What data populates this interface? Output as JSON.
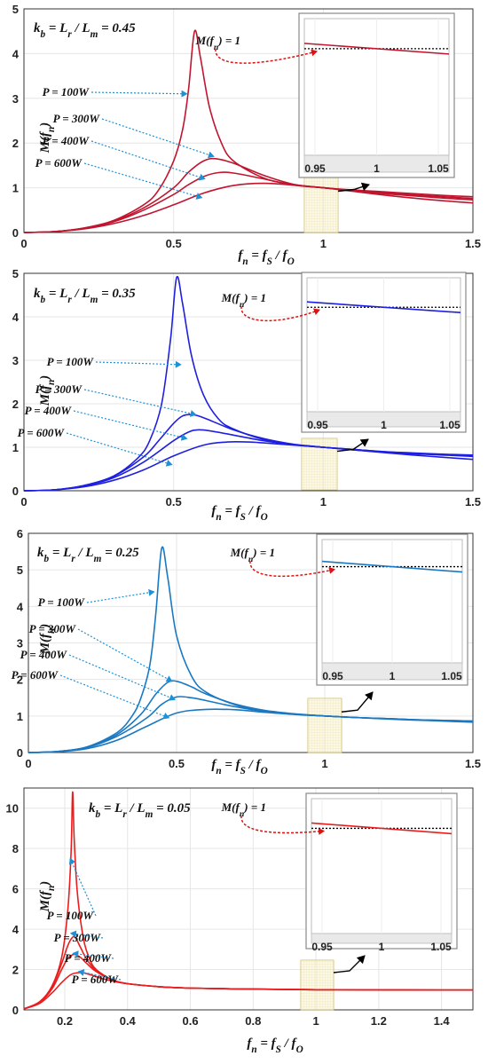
{
  "chart_data": [
    {
      "type": "line",
      "title": "k_b = L_r / L_m = 0.45",
      "xlabel": "f_n = f_S / f_O",
      "ylabel": "M(f_n)",
      "xlim": [
        0,
        1.5
      ],
      "ylim": [
        0,
        5
      ],
      "xticks": [
        "0",
        "0.5",
        "1",
        "1.5"
      ],
      "yticks": [
        "0",
        "1",
        "2",
        "3",
        "4",
        "5"
      ],
      "color": "#c0152f",
      "grid": true,
      "series": [
        {
          "name": "P = 100W",
          "x": [
            0,
            0.1,
            0.2,
            0.3,
            0.4,
            0.45,
            0.5,
            0.53,
            0.55,
            0.57,
            0.59,
            0.62,
            0.66,
            0.7,
            0.8,
            0.9,
            1.0,
            1.1,
            1.2,
            1.3,
            1.4,
            1.5
          ],
          "y": [
            0,
            0.02,
            0.1,
            0.27,
            0.62,
            0.95,
            1.6,
            2.3,
            3.2,
            4.5,
            3.9,
            2.8,
            2.0,
            1.6,
            1.22,
            1.07,
            1.0,
            0.95,
            0.91,
            0.87,
            0.83,
            0.8
          ]
        },
        {
          "name": "P = 300W",
          "x": [
            0,
            0.1,
            0.2,
            0.3,
            0.4,
            0.5,
            0.55,
            0.6,
            0.64,
            0.7,
            0.8,
            0.9,
            1.0,
            1.1,
            1.2,
            1.3,
            1.4,
            1.5
          ],
          "y": [
            0,
            0.02,
            0.1,
            0.26,
            0.55,
            1.0,
            1.35,
            1.6,
            1.65,
            1.55,
            1.28,
            1.08,
            1.0,
            0.94,
            0.89,
            0.84,
            0.8,
            0.76
          ]
        },
        {
          "name": "P = 400W",
          "x": [
            0,
            0.1,
            0.2,
            0.3,
            0.4,
            0.5,
            0.55,
            0.6,
            0.65,
            0.7,
            0.8,
            0.9,
            1.0,
            1.1,
            1.2,
            1.3,
            1.4,
            1.5
          ],
          "y": [
            0,
            0.02,
            0.09,
            0.24,
            0.5,
            0.85,
            1.07,
            1.25,
            1.34,
            1.33,
            1.2,
            1.06,
            1.0,
            0.93,
            0.87,
            0.82,
            0.77,
            0.73
          ]
        },
        {
          "name": "P = 600W",
          "x": [
            0,
            0.1,
            0.2,
            0.3,
            0.4,
            0.5,
            0.6,
            0.7,
            0.8,
            0.9,
            1.0,
            1.1,
            1.2,
            1.3,
            1.4,
            1.5
          ],
          "y": [
            0,
            0.02,
            0.08,
            0.2,
            0.38,
            0.62,
            0.88,
            1.05,
            1.1,
            1.06,
            1.0,
            0.92,
            0.84,
            0.77,
            0.71,
            0.66
          ]
        }
      ],
      "annotations": [
        "P = 100W",
        "P = 300W",
        "P = 400W",
        "P = 600W",
        "M(f_n) = 1"
      ],
      "inset": {
        "xticks": [
          "0.95",
          "1",
          "1.05"
        ]
      }
    },
    {
      "type": "line",
      "title": "k_b = L_r / L_m = 0.35",
      "xlabel": "f_n = f_S / f_O",
      "ylabel": "M(f_n)",
      "xlim": [
        0,
        1.5
      ],
      "ylim": [
        0,
        5
      ],
      "xticks": [
        "0",
        "0.5",
        "1",
        "1.5"
      ],
      "yticks": [
        "0",
        "1",
        "2",
        "3",
        "4",
        "5"
      ],
      "color": "#1f1fe0",
      "grid": true,
      "series": [
        {
          "name": "P = 100W",
          "x": [
            0,
            0.1,
            0.2,
            0.3,
            0.38,
            0.42,
            0.46,
            0.49,
            0.51,
            0.53,
            0.56,
            0.6,
            0.65,
            0.7,
            0.8,
            0.9,
            1.0,
            1.1,
            1.2,
            1.3,
            1.4,
            1.5
          ],
          "y": [
            0,
            0.02,
            0.12,
            0.34,
            0.75,
            1.15,
            2.0,
            3.5,
            4.9,
            4.3,
            3.1,
            2.2,
            1.65,
            1.42,
            1.18,
            1.06,
            1.0,
            0.95,
            0.9,
            0.87,
            0.84,
            0.82
          ]
        },
        {
          "name": "P = 300W",
          "x": [
            0,
            0.1,
            0.2,
            0.3,
            0.4,
            0.45,
            0.5,
            0.53,
            0.56,
            0.6,
            0.7,
            0.8,
            0.9,
            1.0,
            1.1,
            1.2,
            1.3,
            1.4,
            1.5
          ],
          "y": [
            0,
            0.02,
            0.12,
            0.33,
            0.78,
            1.15,
            1.55,
            1.72,
            1.75,
            1.68,
            1.4,
            1.2,
            1.07,
            1.0,
            0.95,
            0.9,
            0.86,
            0.83,
            0.8
          ]
        },
        {
          "name": "P = 400W",
          "x": [
            0,
            0.1,
            0.2,
            0.3,
            0.4,
            0.5,
            0.55,
            0.58,
            0.62,
            0.7,
            0.8,
            0.9,
            1.0,
            1.1,
            1.2,
            1.3,
            1.4,
            1.5
          ],
          "y": [
            0,
            0.02,
            0.11,
            0.3,
            0.66,
            1.15,
            1.35,
            1.4,
            1.38,
            1.28,
            1.15,
            1.06,
            1.0,
            0.94,
            0.89,
            0.85,
            0.82,
            0.79
          ]
        },
        {
          "name": "P = 600W",
          "x": [
            0,
            0.1,
            0.2,
            0.3,
            0.4,
            0.5,
            0.6,
            0.68,
            0.75,
            0.8,
            0.9,
            1.0,
            1.1,
            1.2,
            1.3,
            1.4,
            1.5
          ],
          "y": [
            0,
            0.02,
            0.09,
            0.24,
            0.48,
            0.8,
            1.05,
            1.12,
            1.12,
            1.1,
            1.05,
            1.0,
            0.94,
            0.88,
            0.82,
            0.77,
            0.72
          ]
        }
      ],
      "annotations": [
        "P = 100W",
        "P = 300W",
        "P = 400W",
        "P = 600W",
        "M(f_n) = 1"
      ],
      "inset": {
        "xticks": [
          "0.95",
          "1",
          "1.05"
        ]
      }
    },
    {
      "type": "line",
      "title": "k_b = L_r / L_m = 0.25",
      "xlabel": "f_n = f_S / f_O",
      "ylabel": "M(f_n)",
      "xlim": [
        0,
        1.5
      ],
      "ylim": [
        0,
        6
      ],
      "xticks": [
        "0",
        "0.5",
        "1",
        "1.5"
      ],
      "yticks": [
        "0",
        "1",
        "2",
        "3",
        "4",
        "5",
        "6"
      ],
      "color": "#1a78c2",
      "grid": true,
      "series": [
        {
          "name": "P = 100W",
          "x": [
            0,
            0.1,
            0.2,
            0.3,
            0.35,
            0.38,
            0.41,
            0.43,
            0.45,
            0.47,
            0.5,
            0.55,
            0.6,
            0.7,
            0.8,
            0.9,
            1.0,
            1.1,
            1.2,
            1.3,
            1.4,
            1.5
          ],
          "y": [
            0,
            0.03,
            0.16,
            0.55,
            1.0,
            1.5,
            2.4,
            3.8,
            5.6,
            4.8,
            3.2,
            2.1,
            1.65,
            1.3,
            1.13,
            1.05,
            1.0,
            0.96,
            0.93,
            0.9,
            0.88,
            0.86
          ]
        },
        {
          "name": "P = 300W",
          "x": [
            0,
            0.1,
            0.2,
            0.3,
            0.38,
            0.43,
            0.47,
            0.5,
            0.55,
            0.6,
            0.7,
            0.8,
            0.9,
            1.0,
            1.1,
            1.2,
            1.3,
            1.4,
            1.5
          ],
          "y": [
            0,
            0.03,
            0.15,
            0.5,
            1.05,
            1.6,
            1.92,
            1.95,
            1.8,
            1.6,
            1.32,
            1.15,
            1.06,
            1.0,
            0.96,
            0.93,
            0.9,
            0.88,
            0.86
          ]
        },
        {
          "name": "P = 400W",
          "x": [
            0,
            0.1,
            0.2,
            0.3,
            0.4,
            0.45,
            0.5,
            0.55,
            0.6,
            0.7,
            0.8,
            0.9,
            1.0,
            1.1,
            1.2,
            1.3,
            1.4,
            1.5
          ],
          "y": [
            0,
            0.03,
            0.14,
            0.45,
            0.95,
            1.32,
            1.52,
            1.5,
            1.42,
            1.25,
            1.12,
            1.05,
            1.0,
            0.96,
            0.93,
            0.9,
            0.87,
            0.85
          ]
        },
        {
          "name": "P = 600W",
          "x": [
            0,
            0.1,
            0.2,
            0.3,
            0.4,
            0.5,
            0.6,
            0.7,
            0.8,
            0.9,
            1.0,
            1.1,
            1.2,
            1.3,
            1.4,
            1.5
          ],
          "y": [
            0,
            0.02,
            0.11,
            0.34,
            0.72,
            1.08,
            1.18,
            1.17,
            1.1,
            1.04,
            1.0,
            0.96,
            0.92,
            0.89,
            0.86,
            0.83
          ]
        }
      ],
      "annotations": [
        "P = 100W",
        "P = 300W",
        "P = 400W",
        "P = 600W",
        "M(f_n) = 1"
      ],
      "inset": {
        "xticks": [
          "0.95",
          "1",
          "1.05"
        ]
      }
    },
    {
      "type": "line",
      "title": "k_b = L_r / L_m = 0.05",
      "xlabel": "f_n = f_S / f_O",
      "ylabel": "M(f_n)",
      "xlim": [
        0.07,
        1.5
      ],
      "ylim": [
        0,
        11
      ],
      "xticks": [
        "0.2",
        "0.4",
        "0.6",
        "0.8",
        "1",
        "1.2",
        "1.4"
      ],
      "yticks": [
        "0",
        "2",
        "4",
        "6",
        "8",
        "10"
      ],
      "color": "#e81e1e",
      "grid": true,
      "series": [
        {
          "name": "P = 100W",
          "x": [
            0.07,
            0.12,
            0.16,
            0.19,
            0.21,
            0.22,
            0.225,
            0.23,
            0.24,
            0.26,
            0.28,
            0.3,
            0.35,
            0.4,
            0.5,
            0.6,
            0.8,
            1.0,
            1.2,
            1.4,
            1.5
          ],
          "y": [
            0.05,
            0.4,
            1.2,
            2.6,
            5.0,
            7.8,
            10.8,
            8.5,
            5.8,
            3.5,
            2.5,
            2.0,
            1.5,
            1.3,
            1.15,
            1.08,
            1.03,
            1.0,
            0.99,
            0.98,
            0.98
          ]
        },
        {
          "name": "P = 300W",
          "x": [
            0.07,
            0.12,
            0.16,
            0.19,
            0.21,
            0.225,
            0.235,
            0.25,
            0.27,
            0.3,
            0.35,
            0.4,
            0.5,
            0.6,
            0.8,
            1.0,
            1.2,
            1.4,
            1.5
          ],
          "y": [
            0.05,
            0.4,
            1.15,
            2.3,
            3.2,
            3.6,
            3.55,
            3.1,
            2.5,
            1.95,
            1.5,
            1.3,
            1.15,
            1.08,
            1.03,
            1.0,
            0.99,
            0.98,
            0.98
          ]
        },
        {
          "name": "P = 400W",
          "x": [
            0.07,
            0.12,
            0.16,
            0.19,
            0.21,
            0.23,
            0.25,
            0.27,
            0.3,
            0.35,
            0.4,
            0.5,
            0.6,
            0.8,
            1.0,
            1.2,
            1.4,
            1.5
          ],
          "y": [
            0.05,
            0.38,
            1.05,
            2.0,
            2.55,
            2.75,
            2.6,
            2.3,
            1.9,
            1.5,
            1.3,
            1.15,
            1.08,
            1.03,
            1.0,
            0.99,
            0.98,
            0.98
          ]
        },
        {
          "name": "P = 600W",
          "x": [
            0.07,
            0.12,
            0.16,
            0.19,
            0.22,
            0.25,
            0.28,
            0.32,
            0.36,
            0.4,
            0.5,
            0.6,
            0.8,
            1.0,
            1.2,
            1.4,
            1.5
          ],
          "y": [
            0.05,
            0.32,
            0.85,
            1.35,
            1.75,
            1.85,
            1.75,
            1.55,
            1.4,
            1.3,
            1.15,
            1.08,
            1.03,
            1.0,
            0.99,
            0.98,
            0.98
          ]
        }
      ],
      "annotations": [
        "P = 100W",
        "P = 300W",
        "P = 400W",
        "P = 600W",
        "M(f_n) = 1"
      ],
      "inset": {
        "xticks": [
          "0.95",
          "1",
          "1.05"
        ]
      }
    }
  ]
}
